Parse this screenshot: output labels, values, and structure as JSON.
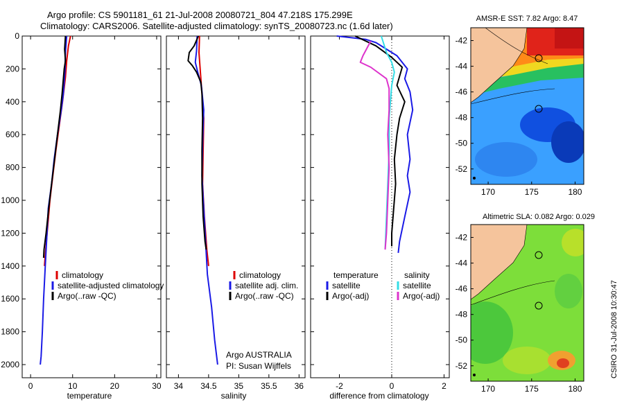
{
  "header": {
    "line1": "Argo profile: CS 5901181_61 21-Jul-2008 20080721_804 47.218S 175.299E",
    "line2": "Climatology: CARS2006. Satellite-adjusted climatology: synTS_20080723.nc (1.6d later)"
  },
  "colors": {
    "climatology": "#dd0000",
    "satellite": "#1a1ae6",
    "argo": "#000000",
    "sal_satellite": "#33dde6",
    "sal_argo": "#dd33cc"
  },
  "y_axis": {
    "ticks": [
      "0",
      "200",
      "400",
      "600",
      "800",
      "1000",
      "1200",
      "1400",
      "1600",
      "1800",
      "2000"
    ]
  },
  "chart_data": [
    {
      "type": "line",
      "panel": "temperature",
      "xlabel": "temperature",
      "xlim": [
        -2,
        31
      ],
      "ylim": [
        0,
        2080
      ],
      "y_reversed": true,
      "xticks": [
        "0",
        "10",
        "20",
        "30"
      ],
      "legend": [
        "climatology",
        "satellite-adjusted climatology",
        "Argo(..raw -QC)"
      ],
      "series": [
        {
          "name": "climatology",
          "color": "#dd0000",
          "points": [
            [
              9.5,
              0
            ],
            [
              9,
              60
            ],
            [
              8.6,
              150
            ],
            [
              8.3,
              250
            ],
            [
              7.6,
              400
            ],
            [
              6.8,
              550
            ],
            [
              6,
              700
            ],
            [
              5.3,
              850
            ],
            [
              4.6,
              1000
            ],
            [
              4.1,
              1150
            ],
            [
              3.6,
              1300
            ],
            [
              3.3,
              1400
            ]
          ]
        },
        {
          "name": "satellite-adjusted climatology",
          "color": "#1a1ae6",
          "points": [
            [
              8.6,
              0
            ],
            [
              8.3,
              100
            ],
            [
              8.2,
              200
            ],
            [
              7.8,
              350
            ],
            [
              7.3,
              450
            ],
            [
              6.4,
              600
            ],
            [
              5.6,
              750
            ],
            [
              5,
              900
            ],
            [
              4.2,
              1050
            ],
            [
              3.9,
              1200
            ],
            [
              3.5,
              1400
            ],
            [
              3.1,
              1600
            ],
            [
              2.8,
              1800
            ],
            [
              2.5,
              1950
            ],
            [
              2.3,
              2000
            ]
          ]
        },
        {
          "name": "Argo(..raw -QC)",
          "color": "#000000",
          "points": [
            [
              8.3,
              0
            ],
            [
              8.1,
              80
            ],
            [
              8.3,
              150
            ],
            [
              8,
              200
            ],
            [
              7.5,
              350
            ],
            [
              7.1,
              450
            ],
            [
              6.4,
              600
            ],
            [
              5.7,
              750
            ],
            [
              5,
              900
            ],
            [
              4.3,
              1050
            ],
            [
              3.7,
              1200
            ],
            [
              3.2,
              1300
            ],
            [
              3.1,
              1350
            ]
          ]
        }
      ]
    },
    {
      "type": "line",
      "panel": "salinity",
      "xlabel": "salinity",
      "xlim": [
        33.8,
        36.1
      ],
      "ylim": [
        0,
        2080
      ],
      "y_reversed": true,
      "xticks": [
        "34",
        "34.5",
        "35",
        "35.5",
        "36"
      ],
      "legend": [
        "climatology",
        "satellite adj. clim.",
        "Argo(..raw -QC)"
      ],
      "annotation": [
        "Argo AUSTRALIA",
        "PI: Susan Wijffels"
      ],
      "series": [
        {
          "name": "climatology",
          "color": "#dd0000",
          "points": [
            [
              34.35,
              0
            ],
            [
              34.34,
              100
            ],
            [
              34.36,
              200
            ],
            [
              34.39,
              350
            ],
            [
              34.42,
              500
            ],
            [
              34.41,
              700
            ],
            [
              34.4,
              900
            ],
            [
              34.43,
              1100
            ],
            [
              34.47,
              1300
            ],
            [
              34.5,
              1400
            ]
          ]
        },
        {
          "name": "satellite adj. clim.",
          "color": "#1a1ae6",
          "points": [
            [
              34.31,
              0
            ],
            [
              34.3,
              90
            ],
            [
              34.28,
              160
            ],
            [
              34.32,
              220
            ],
            [
              34.38,
              300
            ],
            [
              34.42,
              450
            ],
            [
              34.4,
              650
            ],
            [
              34.39,
              850
            ],
            [
              34.42,
              1050
            ],
            [
              34.45,
              1250
            ],
            [
              34.48,
              1450
            ],
            [
              34.55,
              1650
            ],
            [
              34.6,
              1850
            ],
            [
              34.65,
              2000
            ]
          ]
        },
        {
          "name": "Argo(..raw -QC)",
          "color": "#000000",
          "points": [
            [
              34.33,
              0
            ],
            [
              34.26,
              60
            ],
            [
              34.18,
              100
            ],
            [
              34.16,
              150
            ],
            [
              34.23,
              180
            ],
            [
              34.3,
              220
            ],
            [
              34.37,
              280
            ],
            [
              34.39,
              350
            ],
            [
              34.4,
              500
            ],
            [
              34.39,
              700
            ],
            [
              34.39,
              900
            ],
            [
              34.41,
              1100
            ],
            [
              34.44,
              1250
            ],
            [
              34.46,
              1300
            ]
          ]
        }
      ]
    },
    {
      "type": "line",
      "panel": "difference",
      "xlabel": "difference from climatology",
      "xlim": [
        -3.1,
        2.2
      ],
      "ylim": [
        0,
        2080
      ],
      "y_reversed": true,
      "xticks": [
        "-2",
        "0",
        "2"
      ],
      "legend_headers": [
        "temperature",
        "salinity"
      ],
      "legend": [
        "satellite",
        "Argo(-adj)",
        "satellite",
        "Argo(-adj)"
      ],
      "series": [
        {
          "name": "temperature satellite",
          "color": "#1a1ae6",
          "points": [
            [
              -2.1,
              0
            ],
            [
              -1,
              20
            ],
            [
              -0.6,
              40
            ],
            [
              0.2,
              120
            ],
            [
              0.6,
              200
            ],
            [
              0.5,
              260
            ],
            [
              0.7,
              340
            ],
            [
              0.8,
              450
            ],
            [
              0.6,
              600
            ],
            [
              0.7,
              750
            ],
            [
              0.6,
              850
            ],
            [
              0.7,
              950
            ],
            [
              0.5,
              1100
            ],
            [
              0.3,
              1250
            ],
            [
              0.25,
              1320
            ]
          ]
        },
        {
          "name": "temperature Argo(-adj)",
          "color": "#000000",
          "points": [
            [
              -1.4,
              0
            ],
            [
              -0.6,
              60
            ],
            [
              0,
              130
            ],
            [
              0.4,
              190
            ],
            [
              0.2,
              300
            ],
            [
              0.5,
              400
            ],
            [
              0.3,
              500
            ],
            [
              0.2,
              600
            ],
            [
              0.1,
              750
            ],
            [
              0.15,
              900
            ],
            [
              0.05,
              1100
            ],
            [
              0,
              1200
            ],
            [
              0,
              1280
            ]
          ]
        },
        {
          "name": "salinity satellite",
          "color": "#33dde6",
          "points": [
            [
              -0.4,
              0
            ],
            [
              -0.2,
              100
            ],
            [
              0,
              160
            ],
            [
              0.1,
              220
            ],
            [
              0,
              300
            ],
            [
              -0.1,
              500
            ],
            [
              -0.1,
              700
            ],
            [
              -0.15,
              900
            ],
            [
              -0.2,
              1100
            ],
            [
              -0.25,
              1300
            ]
          ]
        },
        {
          "name": "salinity Argo(-adj)",
          "color": "#dd33cc",
          "points": [
            [
              -0.8,
              30
            ],
            [
              -1.1,
              120
            ],
            [
              -1.2,
              160
            ],
            [
              -0.8,
              190
            ],
            [
              -0.2,
              260
            ],
            [
              -0.1,
              320
            ],
            [
              -0.1,
              450
            ],
            [
              -0.15,
              600
            ],
            [
              -0.1,
              800
            ],
            [
              -0.15,
              1000
            ],
            [
              -0.2,
              1200
            ],
            [
              -0.25,
              1300
            ]
          ]
        }
      ]
    }
  ],
  "maps": [
    {
      "title": "AMSR-E SST: 7.82  Argo: 8.47",
      "xticks": [
        "170",
        "175",
        "180"
      ],
      "yticks": [
        "-42",
        "-44",
        "-46",
        "-48",
        "-50",
        "-52"
      ]
    },
    {
      "title": "Altimetric SLA: 0.082  Argo: 0.029",
      "xticks": [
        "170",
        "175",
        "180"
      ],
      "yticks": [
        "-42",
        "-44",
        "-46",
        "-48",
        "-50",
        "-52"
      ]
    }
  ],
  "credit": "CSIRO 31-Jul-2008 10:30:47"
}
